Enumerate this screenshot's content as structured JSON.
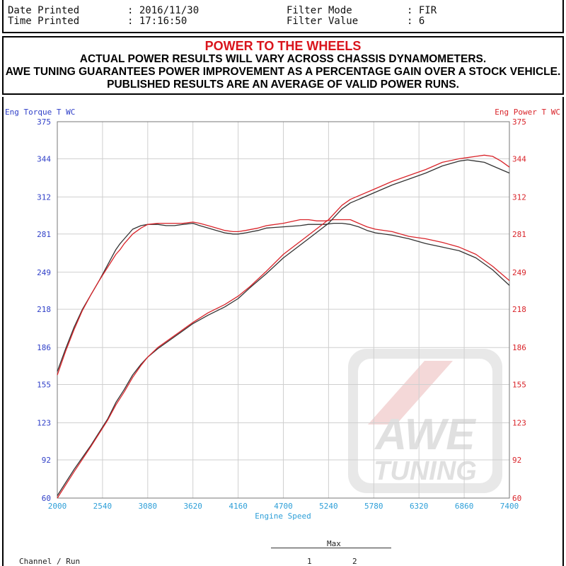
{
  "header": {
    "date_label": "Date Printed",
    "date_value": ": 2016/11/30",
    "time_label": "Time Printed",
    "time_value": ": 17:16:50",
    "filter_mode_label": "Filter Mode",
    "filter_mode_value": ": FIR",
    "filter_value_label": "Filter Value",
    "filter_value_value": ": 6"
  },
  "banner": {
    "title": "POWER TO THE WHEELS",
    "line1": "ACTUAL POWER RESULTS WILL VARY ACROSS CHASSIS DYNAMOMETERS.",
    "line2": "AWE TUNING GUARANTEES POWER IMPROVEMENT AS A PERCENTAGE GAIN OVER A STOCK VEHICLE.",
    "line3": "PUBLISHED RESULTS ARE AN AVERAGE OF VALID POWER RUNS."
  },
  "watermark": {
    "line1": "AWE",
    "line2": "TUNING"
  },
  "footer": {
    "max_label": "Max",
    "channel_run_label": "Channel / Run",
    "run1": "1",
    "run2": "2"
  },
  "colors": {
    "left_axis": "#2f3fc8",
    "right_axis": "#d9242a",
    "x_axis": "#2e9fd8",
    "run1": "#333333",
    "run2": "#d9242a"
  },
  "chart_data": {
    "type": "line",
    "ylabel_left": "Eng Torque T WC",
    "ylabel_right": "Eng Power T WC",
    "xlabel": "Engine Speed",
    "xlim": [
      2000,
      7400
    ],
    "ylim": [
      60,
      375
    ],
    "x_ticks": [
      2000,
      2540,
      3080,
      3620,
      4160,
      4700,
      5240,
      5780,
      6320,
      6860,
      7400
    ],
    "y_ticks": [
      60,
      92,
      123,
      155,
      186,
      218,
      249,
      281,
      312,
      344,
      375
    ],
    "grid": true,
    "series": [
      {
        "run": "1",
        "quantity": "torque",
        "x": [
          2000,
          2100,
          2200,
          2300,
          2400,
          2500,
          2600,
          2700,
          2750,
          2800,
          2900,
          3000,
          3080,
          3200,
          3300,
          3400,
          3500,
          3620,
          3700,
          3800,
          3900,
          4000,
          4100,
          4160,
          4250,
          4400,
          4500,
          4700,
          4900,
          5000,
          5100,
          5200,
          5300,
          5400,
          5500,
          5600,
          5700,
          5800,
          6000,
          6200,
          6400,
          6600,
          6800,
          7000,
          7200,
          7400
        ],
        "y": [
          166,
          185,
          203,
          218,
          230,
          242,
          255,
          268,
          273,
          277,
          285,
          288,
          289,
          289,
          288,
          288,
          289,
          290,
          288,
          286,
          284,
          282,
          281,
          281,
          282,
          284,
          286,
          287,
          288,
          289,
          289,
          289,
          290,
          290,
          289,
          287,
          284,
          282,
          280,
          277,
          273,
          270,
          267,
          261,
          251,
          238
        ]
      },
      {
        "run": "2",
        "quantity": "torque",
        "x": [
          2000,
          2100,
          2200,
          2300,
          2400,
          2500,
          2600,
          2700,
          2750,
          2800,
          2900,
          3000,
          3080,
          3200,
          3300,
          3400,
          3500,
          3620,
          3700,
          3800,
          3900,
          4000,
          4100,
          4160,
          4250,
          4400,
          4500,
          4700,
          4900,
          5000,
          5100,
          5200,
          5300,
          5400,
          5500,
          5600,
          5700,
          5800,
          6000,
          6200,
          6400,
          6600,
          6800,
          7000,
          7200,
          7400
        ],
        "y": [
          163,
          183,
          201,
          217,
          230,
          242,
          253,
          264,
          268,
          273,
          281,
          286,
          289,
          290,
          290,
          290,
          290,
          291,
          290,
          288,
          286,
          284,
          283,
          283,
          284,
          286,
          288,
          290,
          293,
          293,
          292,
          292,
          293,
          293,
          293,
          290,
          287,
          285,
          283,
          279,
          277,
          274,
          270,
          264,
          254,
          242
        ]
      },
      {
        "run": "1",
        "quantity": "power",
        "x": [
          2000,
          2200,
          2400,
          2600,
          2700,
          2800,
          2900,
          3000,
          3080,
          3200,
          3400,
          3620,
          3800,
          4000,
          4160,
          4300,
          4500,
          4700,
          5000,
          5240,
          5400,
          5500,
          5600,
          5800,
          6000,
          6200,
          6400,
          6600,
          6800,
          6900,
          7000,
          7100,
          7200,
          7300,
          7400
        ],
        "y": [
          62,
          84,
          104,
          126,
          140,
          151,
          163,
          172,
          178,
          185,
          195,
          206,
          213,
          220,
          227,
          236,
          248,
          261,
          277,
          290,
          302,
          307,
          310,
          316,
          322,
          327,
          332,
          338,
          342,
          343,
          342,
          341,
          338,
          335,
          332
        ]
      },
      {
        "run": "2",
        "quantity": "power",
        "x": [
          2000,
          2200,
          2400,
          2600,
          2700,
          2800,
          2900,
          3000,
          3080,
          3200,
          3400,
          3620,
          3800,
          4000,
          4160,
          4300,
          4500,
          4700,
          5000,
          5240,
          5400,
          5500,
          5600,
          5800,
          6000,
          6200,
          6400,
          6600,
          6800,
          6900,
          7000,
          7100,
          7200,
          7300,
          7400
        ],
        "y": [
          60,
          82,
          103,
          125,
          138,
          149,
          161,
          171,
          178,
          186,
          196,
          207,
          215,
          222,
          229,
          237,
          250,
          264,
          280,
          293,
          305,
          310,
          313,
          319,
          325,
          330,
          335,
          341,
          344,
          345,
          346,
          347,
          346,
          342,
          337
        ]
      }
    ]
  }
}
